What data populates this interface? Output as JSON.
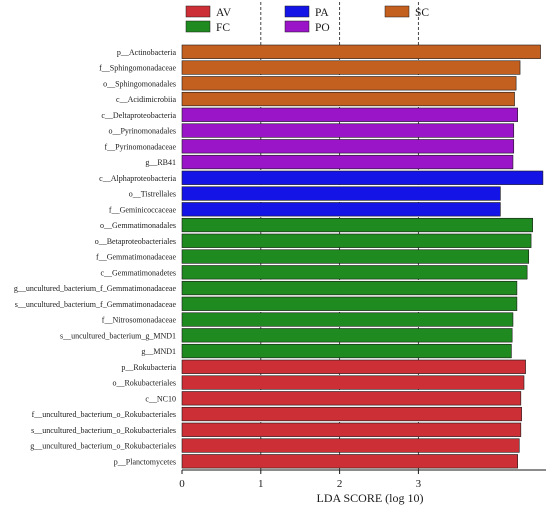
{
  "chart_data": {
    "type": "bar",
    "orientation": "horizontal",
    "xlabel": "LDA SCORE (log 10)",
    "xlim": [
      0,
      4.6
    ],
    "xticks": [
      "0",
      "1",
      "2",
      "3"
    ],
    "grid": "dashed vertical lines at 1, 2, 3",
    "legend_position": "top",
    "legend": [
      {
        "name": "AV",
        "color": "#cc2f35"
      },
      {
        "name": "PA",
        "color": "#1414e6"
      },
      {
        "name": "SC",
        "color": "#c4601f"
      },
      {
        "name": "FC",
        "color": "#1f8a1f"
      },
      {
        "name": "PO",
        "color": "#9a14c8"
      }
    ],
    "categories": [
      "p__Actinobacteria",
      "f__Sphingomonadaceae",
      "o__Sphingomonadales",
      "c__Acidimicrobiia",
      "c__Deltaproteobacteria",
      "o__Pyrinomonadales",
      "f__Pyrinomonadaceae",
      "g__RB41",
      "c__Alphaproteobacteria",
      "o__Tistrellales",
      "f__Geminicoccaceae",
      "o__Gemmatimonadales",
      "o__Betaproteobacteriales",
      "f__Gemmatimonadaceae",
      "c__Gemmatimonadetes",
      "g__uncultured_bacterium_f_Gemmatimonadaceae",
      "s__uncultured_bacterium_f_Gemmatimonadaceae",
      "f__Nitrosomonadaceae",
      "s__uncultured_bacterium_g_MND1",
      "g__MND1",
      "p__Rokubacteria",
      "o__Rokubacteriales",
      "c__NC10",
      "f__uncultured_bacterium_o_Rokubacteriales",
      "s__uncultured_bacterium_o_Rokubacteriales",
      "g__uncultured_bacterium_o_Rokubacteriales",
      "p__Planctomycetes"
    ],
    "groups": [
      "SC",
      "SC",
      "SC",
      "SC",
      "PO",
      "PO",
      "PO",
      "PO",
      "PA",
      "PA",
      "PA",
      "FC",
      "FC",
      "FC",
      "FC",
      "FC",
      "FC",
      "FC",
      "FC",
      "FC",
      "AV",
      "AV",
      "AV",
      "AV",
      "AV",
      "AV",
      "AV"
    ],
    "values": [
      4.55,
      4.29,
      4.24,
      4.22,
      4.26,
      4.21,
      4.21,
      4.2,
      4.58,
      4.04,
      4.04,
      4.45,
      4.43,
      4.4,
      4.38,
      4.25,
      4.25,
      4.2,
      4.19,
      4.18,
      4.36,
      4.34,
      4.3,
      4.31,
      4.3,
      4.28,
      4.26
    ]
  }
}
